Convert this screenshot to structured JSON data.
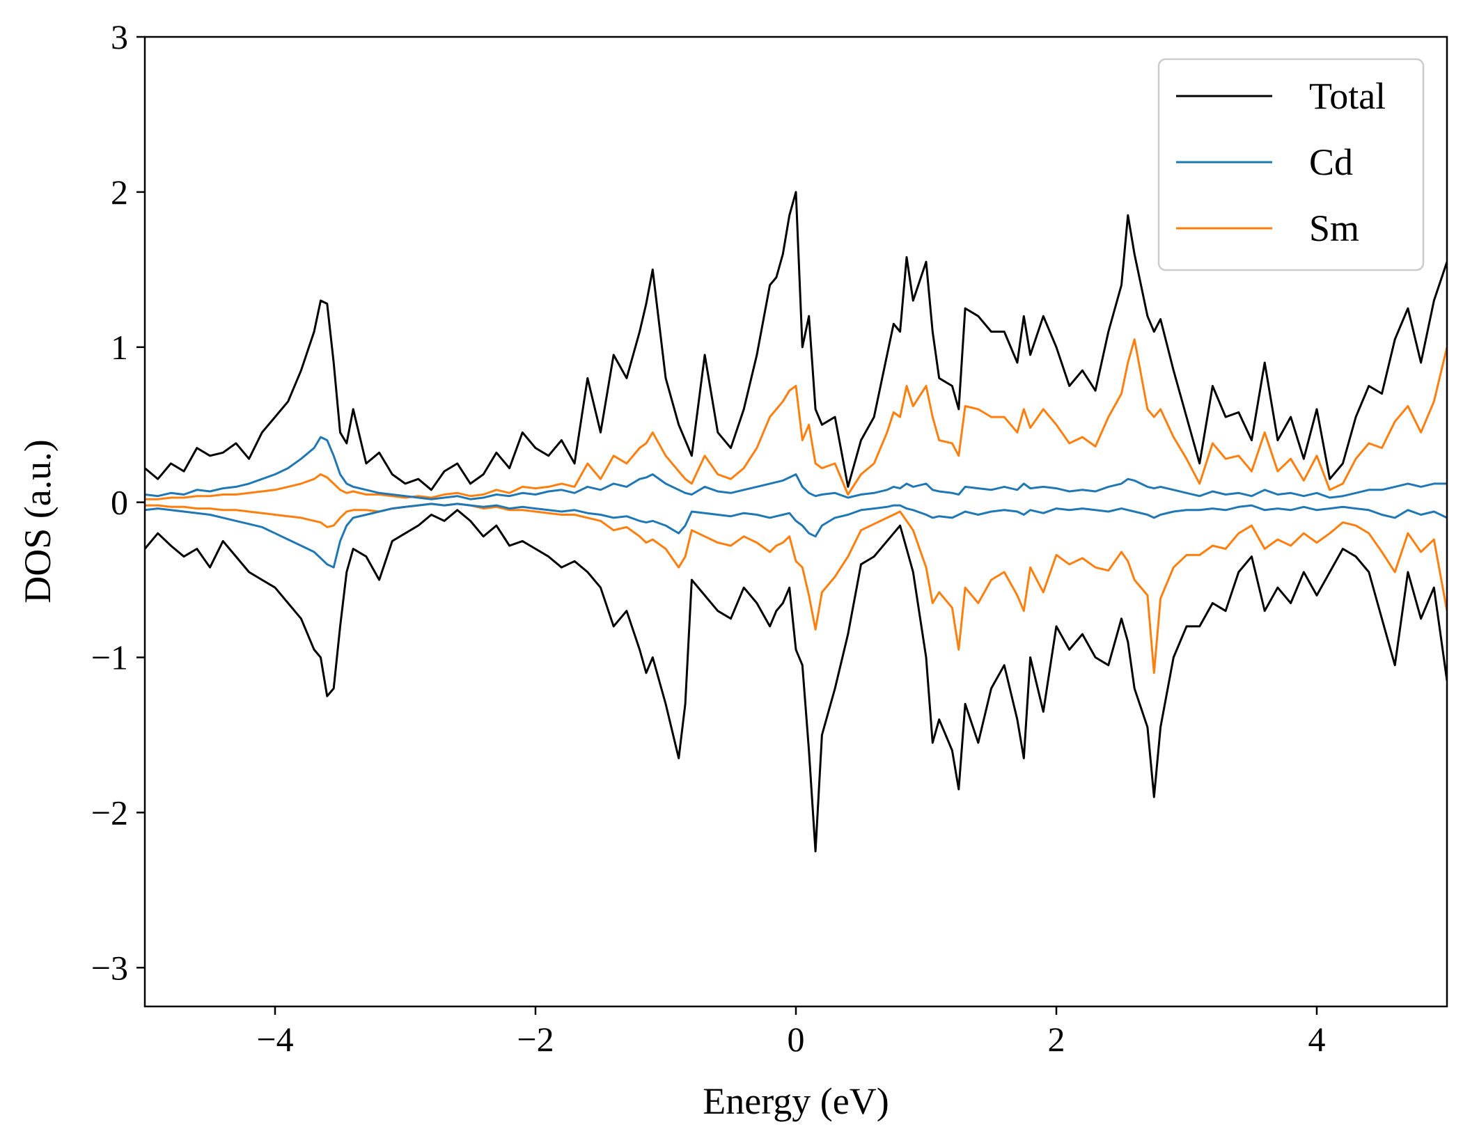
{
  "chart_data": {
    "type": "line",
    "title": "",
    "xlabel": "Energy (eV)",
    "ylabel": "DOS (a.u.)",
    "xlim": [
      -5,
      5
    ],
    "ylim": [
      -3.25,
      3
    ],
    "xticks": [
      -4,
      -2,
      0,
      2,
      4
    ],
    "xtick_labels": [
      "−4",
      "−2",
      "0",
      "2",
      "4"
    ],
    "yticks": [
      -3,
      -2,
      -1,
      0,
      1,
      2,
      3
    ],
    "ytick_labels": [
      "−3",
      "−2",
      "−1",
      "0",
      "1",
      "2",
      "3"
    ],
    "grid": false,
    "legend_position": "top-right",
    "x": [
      -5.0,
      -4.9,
      -4.8,
      -4.7,
      -4.6,
      -4.5,
      -4.4,
      -4.3,
      -4.2,
      -4.1,
      -4.0,
      -3.9,
      -3.8,
      -3.7,
      -3.65,
      -3.6,
      -3.55,
      -3.5,
      -3.45,
      -3.4,
      -3.3,
      -3.2,
      -3.1,
      -3.0,
      -2.9,
      -2.8,
      -2.7,
      -2.6,
      -2.5,
      -2.4,
      -2.3,
      -2.2,
      -2.1,
      -2.0,
      -1.9,
      -1.8,
      -1.7,
      -1.6,
      -1.5,
      -1.4,
      -1.3,
      -1.2,
      -1.15,
      -1.1,
      -1.0,
      -0.9,
      -0.85,
      -0.8,
      -0.7,
      -0.6,
      -0.5,
      -0.4,
      -0.3,
      -0.2,
      -0.15,
      -0.1,
      -0.05,
      0.0,
      0.05,
      0.1,
      0.15,
      0.2,
      0.3,
      0.4,
      0.5,
      0.6,
      0.7,
      0.75,
      0.8,
      0.85,
      0.9,
      1.0,
      1.05,
      1.1,
      1.2,
      1.25,
      1.3,
      1.4,
      1.5,
      1.6,
      1.7,
      1.75,
      1.8,
      1.9,
      2.0,
      2.1,
      2.2,
      2.3,
      2.4,
      2.5,
      2.55,
      2.6,
      2.7,
      2.75,
      2.8,
      2.9,
      3.0,
      3.1,
      3.2,
      3.3,
      3.4,
      3.5,
      3.6,
      3.7,
      3.8,
      3.9,
      4.0,
      4.1,
      4.2,
      4.3,
      4.4,
      4.5,
      4.6,
      4.7,
      4.8,
      4.9,
      5.0
    ],
    "series": [
      {
        "name": "Total",
        "color": "#000000",
        "up": [
          0.22,
          0.15,
          0.25,
          0.2,
          0.35,
          0.3,
          0.32,
          0.38,
          0.28,
          0.45,
          0.55,
          0.65,
          0.85,
          1.1,
          1.3,
          1.28,
          0.9,
          0.45,
          0.38,
          0.6,
          0.25,
          0.32,
          0.18,
          0.12,
          0.15,
          0.08,
          0.2,
          0.25,
          0.12,
          0.18,
          0.32,
          0.22,
          0.45,
          0.35,
          0.3,
          0.4,
          0.25,
          0.8,
          0.45,
          0.95,
          0.8,
          1.1,
          1.28,
          1.5,
          0.8,
          0.5,
          0.4,
          0.3,
          0.95,
          0.45,
          0.35,
          0.6,
          0.95,
          1.4,
          1.45,
          1.6,
          1.85,
          2.0,
          1.0,
          1.2,
          0.6,
          0.5,
          0.55,
          0.1,
          0.4,
          0.55,
          0.95,
          1.15,
          1.1,
          1.58,
          1.3,
          1.55,
          1.1,
          0.8,
          0.75,
          0.6,
          1.25,
          1.2,
          1.1,
          1.1,
          0.9,
          1.2,
          0.95,
          1.2,
          1.0,
          0.75,
          0.85,
          0.72,
          1.1,
          1.4,
          1.85,
          1.6,
          1.2,
          1.1,
          1.18,
          0.85,
          0.55,
          0.25,
          0.75,
          0.55,
          0.58,
          0.4,
          0.9,
          0.4,
          0.55,
          0.28,
          0.6,
          0.15,
          0.25,
          0.55,
          0.75,
          0.7,
          1.05,
          1.25,
          0.9,
          1.3,
          1.55
        ],
        "down": [
          -0.3,
          -0.2,
          -0.28,
          -0.35,
          -0.3,
          -0.42,
          -0.25,
          -0.35,
          -0.45,
          -0.5,
          -0.55,
          -0.65,
          -0.75,
          -0.95,
          -1.0,
          -1.25,
          -1.2,
          -0.8,
          -0.45,
          -0.3,
          -0.35,
          -0.5,
          -0.25,
          -0.2,
          -0.15,
          -0.08,
          -0.12,
          -0.05,
          -0.12,
          -0.22,
          -0.15,
          -0.28,
          -0.25,
          -0.3,
          -0.35,
          -0.42,
          -0.38,
          -0.45,
          -0.55,
          -0.8,
          -0.7,
          -0.95,
          -1.1,
          -1.0,
          -1.3,
          -1.65,
          -1.3,
          -0.5,
          -0.6,
          -0.7,
          -0.75,
          -0.55,
          -0.65,
          -0.8,
          -0.7,
          -0.65,
          -0.55,
          -0.95,
          -1.05,
          -1.6,
          -2.25,
          -1.5,
          -1.2,
          -0.85,
          -0.4,
          -0.35,
          -0.25,
          -0.2,
          -0.15,
          -0.3,
          -0.45,
          -1.0,
          -1.55,
          -1.4,
          -1.6,
          -1.85,
          -1.3,
          -1.55,
          -1.2,
          -1.05,
          -1.4,
          -1.65,
          -1.0,
          -1.35,
          -0.8,
          -0.95,
          -0.85,
          -1.0,
          -1.05,
          -0.75,
          -0.9,
          -1.2,
          -1.45,
          -1.9,
          -1.45,
          -1.0,
          -0.8,
          -0.8,
          -0.65,
          -0.7,
          -0.45,
          -0.35,
          -0.7,
          -0.55,
          -0.65,
          -0.45,
          -0.6,
          -0.45,
          -0.3,
          -0.35,
          -0.45,
          -0.75,
          -1.05,
          -0.45,
          -0.75,
          -0.55,
          -1.15
        ]
      },
      {
        "name": "Cd",
        "color": "#1f77b4",
        "up": [
          0.05,
          0.04,
          0.06,
          0.05,
          0.08,
          0.07,
          0.09,
          0.1,
          0.12,
          0.15,
          0.18,
          0.22,
          0.28,
          0.35,
          0.42,
          0.4,
          0.3,
          0.18,
          0.12,
          0.1,
          0.08,
          0.06,
          0.05,
          0.04,
          0.03,
          0.02,
          0.03,
          0.04,
          0.02,
          0.03,
          0.05,
          0.04,
          0.06,
          0.05,
          0.07,
          0.08,
          0.06,
          0.1,
          0.08,
          0.12,
          0.1,
          0.15,
          0.16,
          0.18,
          0.12,
          0.08,
          0.06,
          0.05,
          0.1,
          0.07,
          0.06,
          0.08,
          0.1,
          0.12,
          0.13,
          0.14,
          0.16,
          0.18,
          0.1,
          0.06,
          0.04,
          0.05,
          0.06,
          0.03,
          0.05,
          0.06,
          0.08,
          0.1,
          0.09,
          0.12,
          0.1,
          0.12,
          0.08,
          0.07,
          0.06,
          0.05,
          0.1,
          0.09,
          0.08,
          0.1,
          0.08,
          0.12,
          0.09,
          0.1,
          0.09,
          0.07,
          0.08,
          0.07,
          0.1,
          0.12,
          0.15,
          0.14,
          0.1,
          0.09,
          0.1,
          0.08,
          0.06,
          0.04,
          0.07,
          0.05,
          0.06,
          0.04,
          0.08,
          0.05,
          0.06,
          0.04,
          0.06,
          0.03,
          0.04,
          0.06,
          0.08,
          0.08,
          0.1,
          0.12,
          0.1,
          0.12,
          0.12
        ],
        "down": [
          -0.05,
          -0.04,
          -0.05,
          -0.06,
          -0.07,
          -0.08,
          -0.1,
          -0.12,
          -0.14,
          -0.16,
          -0.2,
          -0.24,
          -0.28,
          -0.32,
          -0.36,
          -0.4,
          -0.42,
          -0.25,
          -0.15,
          -0.1,
          -0.08,
          -0.06,
          -0.04,
          -0.03,
          -0.02,
          -0.01,
          -0.02,
          -0.01,
          -0.02,
          -0.03,
          -0.02,
          -0.04,
          -0.03,
          -0.04,
          -0.05,
          -0.06,
          -0.05,
          -0.07,
          -0.08,
          -0.1,
          -0.09,
          -0.12,
          -0.13,
          -0.12,
          -0.15,
          -0.2,
          -0.15,
          -0.06,
          -0.07,
          -0.08,
          -0.09,
          -0.07,
          -0.08,
          -0.1,
          -0.09,
          -0.08,
          -0.07,
          -0.12,
          -0.15,
          -0.2,
          -0.22,
          -0.15,
          -0.1,
          -0.08,
          -0.05,
          -0.04,
          -0.03,
          -0.02,
          -0.02,
          -0.04,
          -0.05,
          -0.08,
          -0.1,
          -0.09,
          -0.1,
          -0.08,
          -0.06,
          -0.08,
          -0.06,
          -0.05,
          -0.06,
          -0.08,
          -0.05,
          -0.07,
          -0.04,
          -0.05,
          -0.04,
          -0.05,
          -0.06,
          -0.04,
          -0.05,
          -0.06,
          -0.08,
          -0.1,
          -0.08,
          -0.06,
          -0.05,
          -0.05,
          -0.04,
          -0.05,
          -0.03,
          -0.02,
          -0.05,
          -0.04,
          -0.05,
          -0.03,
          -0.05,
          -0.04,
          -0.03,
          -0.04,
          -0.05,
          -0.08,
          -0.1,
          -0.05,
          -0.08,
          -0.06,
          -0.1
        ]
      },
      {
        "name": "Sm",
        "color": "#ff7f0e",
        "up": [
          0.02,
          0.02,
          0.03,
          0.03,
          0.04,
          0.04,
          0.05,
          0.05,
          0.06,
          0.07,
          0.08,
          0.1,
          0.12,
          0.15,
          0.18,
          0.16,
          0.12,
          0.08,
          0.06,
          0.07,
          0.05,
          0.05,
          0.04,
          0.03,
          0.04,
          0.03,
          0.05,
          0.06,
          0.04,
          0.05,
          0.08,
          0.06,
          0.1,
          0.09,
          0.1,
          0.12,
          0.1,
          0.25,
          0.15,
          0.3,
          0.25,
          0.35,
          0.38,
          0.45,
          0.3,
          0.2,
          0.15,
          0.12,
          0.3,
          0.18,
          0.15,
          0.22,
          0.35,
          0.55,
          0.6,
          0.65,
          0.72,
          0.75,
          0.4,
          0.5,
          0.25,
          0.22,
          0.25,
          0.05,
          0.18,
          0.25,
          0.45,
          0.58,
          0.55,
          0.75,
          0.62,
          0.75,
          0.55,
          0.4,
          0.38,
          0.3,
          0.62,
          0.6,
          0.55,
          0.55,
          0.45,
          0.6,
          0.48,
          0.6,
          0.5,
          0.38,
          0.42,
          0.36,
          0.55,
          0.7,
          0.9,
          1.05,
          0.6,
          0.55,
          0.6,
          0.42,
          0.28,
          0.12,
          0.38,
          0.28,
          0.3,
          0.2,
          0.45,
          0.2,
          0.28,
          0.14,
          0.3,
          0.08,
          0.12,
          0.28,
          0.38,
          0.35,
          0.52,
          0.62,
          0.45,
          0.65,
          1.0
        ],
        "down": [
          -0.02,
          -0.02,
          -0.03,
          -0.03,
          -0.04,
          -0.04,
          -0.05,
          -0.05,
          -0.06,
          -0.07,
          -0.08,
          -0.09,
          -0.1,
          -0.12,
          -0.13,
          -0.16,
          -0.15,
          -0.1,
          -0.06,
          -0.05,
          -0.05,
          -0.06,
          -0.04,
          -0.03,
          -0.02,
          -0.01,
          -0.02,
          -0.01,
          -0.02,
          -0.04,
          -0.03,
          -0.05,
          -0.05,
          -0.06,
          -0.07,
          -0.08,
          -0.08,
          -0.1,
          -0.12,
          -0.18,
          -0.16,
          -0.22,
          -0.26,
          -0.24,
          -0.3,
          -0.42,
          -0.35,
          -0.18,
          -0.22,
          -0.26,
          -0.28,
          -0.22,
          -0.26,
          -0.32,
          -0.28,
          -0.26,
          -0.22,
          -0.38,
          -0.42,
          -0.6,
          -0.82,
          -0.58,
          -0.48,
          -0.35,
          -0.18,
          -0.14,
          -0.1,
          -0.08,
          -0.06,
          -0.12,
          -0.18,
          -0.42,
          -0.65,
          -0.58,
          -0.68,
          -0.95,
          -0.55,
          -0.65,
          -0.5,
          -0.45,
          -0.6,
          -0.7,
          -0.42,
          -0.58,
          -0.34,
          -0.4,
          -0.36,
          -0.42,
          -0.44,
          -0.32,
          -0.38,
          -0.5,
          -0.6,
          -1.1,
          -0.62,
          -0.42,
          -0.34,
          -0.34,
          -0.28,
          -0.3,
          -0.2,
          -0.15,
          -0.3,
          -0.24,
          -0.28,
          -0.2,
          -0.26,
          -0.2,
          -0.13,
          -0.15,
          -0.2,
          -0.32,
          -0.45,
          -0.2,
          -0.32,
          -0.24,
          -0.7
        ]
      }
    ]
  }
}
